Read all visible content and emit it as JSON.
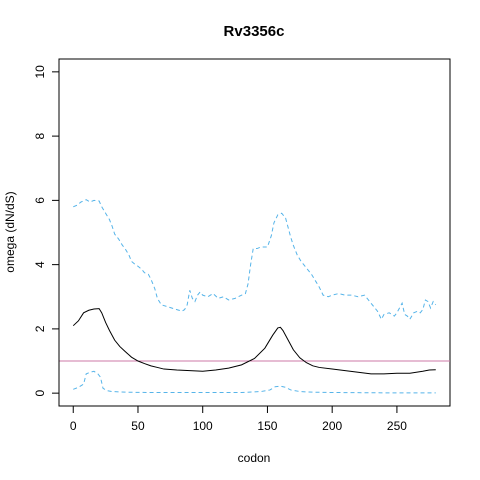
{
  "chart_data": {
    "type": "line",
    "title": "Rv3356c",
    "xlabel": "codon",
    "ylabel": "omega (dN/dS)",
    "xlim": [
      -11,
      291
    ],
    "ylim": [
      -0.4,
      10.4
    ],
    "x_ticks": [
      0,
      50,
      100,
      150,
      200,
      250
    ],
    "y_ticks": [
      0,
      2,
      4,
      6,
      8,
      10
    ],
    "reference_line": {
      "y": 1,
      "color": "#cc79a7"
    },
    "colors": {
      "estimate": "#000000",
      "bounds": "#56b4e9"
    },
    "series": [
      {
        "role": "upper_bound",
        "style": "dashed",
        "points": [
          [
            0,
            5.8
          ],
          [
            3,
            5.85
          ],
          [
            6,
            5.95
          ],
          [
            10,
            6.02
          ],
          [
            13,
            5.95
          ],
          [
            16,
            6.0
          ],
          [
            20,
            5.98
          ],
          [
            22,
            5.8
          ],
          [
            25,
            5.6
          ],
          [
            28,
            5.4
          ],
          [
            30,
            5.2
          ],
          [
            32,
            4.95
          ],
          [
            35,
            4.8
          ],
          [
            38,
            4.6
          ],
          [
            40,
            4.5
          ],
          [
            43,
            4.3
          ],
          [
            45,
            4.1
          ],
          [
            48,
            4.0
          ],
          [
            50,
            3.95
          ],
          [
            53,
            3.85
          ],
          [
            55,
            3.75
          ],
          [
            58,
            3.7
          ],
          [
            60,
            3.55
          ],
          [
            63,
            3.25
          ],
          [
            65,
            2.95
          ],
          [
            68,
            2.75
          ],
          [
            72,
            2.7
          ],
          [
            76,
            2.65
          ],
          [
            80,
            2.6
          ],
          [
            84,
            2.55
          ],
          [
            86,
            2.6
          ],
          [
            88,
            2.75
          ],
          [
            90,
            3.2
          ],
          [
            92,
            2.95
          ],
          [
            94,
            2.85
          ],
          [
            96,
            3.05
          ],
          [
            98,
            3.15
          ],
          [
            100,
            3.05
          ],
          [
            104,
            3.0
          ],
          [
            108,
            3.1
          ],
          [
            112,
            2.95
          ],
          [
            116,
            3.0
          ],
          [
            120,
            2.9
          ],
          [
            125,
            2.95
          ],
          [
            130,
            3.05
          ],
          [
            133,
            3.1
          ],
          [
            135,
            3.4
          ],
          [
            137,
            4.0
          ],
          [
            139,
            4.5
          ],
          [
            142,
            4.5
          ],
          [
            145,
            4.55
          ],
          [
            150,
            4.55
          ],
          [
            153,
            4.9
          ],
          [
            155,
            5.3
          ],
          [
            158,
            5.55
          ],
          [
            161,
            5.6
          ],
          [
            164,
            5.45
          ],
          [
            166,
            5.15
          ],
          [
            168,
            4.85
          ],
          [
            170,
            4.6
          ],
          [
            173,
            4.3
          ],
          [
            176,
            4.1
          ],
          [
            180,
            3.9
          ],
          [
            184,
            3.7
          ],
          [
            187,
            3.5
          ],
          [
            190,
            3.3
          ],
          [
            193,
            3.05
          ],
          [
            197,
            3.0
          ],
          [
            200,
            3.05
          ],
          [
            205,
            3.1
          ],
          [
            210,
            3.05
          ],
          [
            215,
            3.05
          ],
          [
            220,
            3.0
          ],
          [
            225,
            3.05
          ],
          [
            228,
            2.9
          ],
          [
            232,
            2.7
          ],
          [
            235,
            2.55
          ],
          [
            238,
            2.3
          ],
          [
            240,
            2.45
          ],
          [
            244,
            2.5
          ],
          [
            248,
            2.4
          ],
          [
            250,
            2.5
          ],
          [
            252,
            2.65
          ],
          [
            254,
            2.8
          ],
          [
            256,
            2.45
          ],
          [
            258,
            2.4
          ],
          [
            260,
            2.3
          ],
          [
            263,
            2.5
          ],
          [
            266,
            2.55
          ],
          [
            268,
            2.5
          ],
          [
            270,
            2.6
          ],
          [
            272,
            2.9
          ],
          [
            274,
            2.85
          ],
          [
            276,
            2.65
          ],
          [
            278,
            2.85
          ],
          [
            280,
            2.75
          ]
        ]
      },
      {
        "role": "estimate",
        "style": "solid",
        "points": [
          [
            0,
            2.1
          ],
          [
            4,
            2.25
          ],
          [
            8,
            2.5
          ],
          [
            12,
            2.58
          ],
          [
            16,
            2.62
          ],
          [
            20,
            2.63
          ],
          [
            22,
            2.5
          ],
          [
            25,
            2.2
          ],
          [
            28,
            1.95
          ],
          [
            32,
            1.65
          ],
          [
            36,
            1.45
          ],
          [
            40,
            1.3
          ],
          [
            45,
            1.12
          ],
          [
            50,
            1.0
          ],
          [
            55,
            0.92
          ],
          [
            60,
            0.85
          ],
          [
            65,
            0.8
          ],
          [
            70,
            0.75
          ],
          [
            80,
            0.72
          ],
          [
            90,
            0.7
          ],
          [
            100,
            0.68
          ],
          [
            110,
            0.72
          ],
          [
            120,
            0.78
          ],
          [
            130,
            0.88
          ],
          [
            140,
            1.08
          ],
          [
            148,
            1.4
          ],
          [
            154,
            1.8
          ],
          [
            158,
            2.03
          ],
          [
            160,
            2.05
          ],
          [
            162,
            1.95
          ],
          [
            166,
            1.65
          ],
          [
            170,
            1.35
          ],
          [
            175,
            1.1
          ],
          [
            180,
            0.95
          ],
          [
            185,
            0.85
          ],
          [
            190,
            0.8
          ],
          [
            200,
            0.75
          ],
          [
            210,
            0.7
          ],
          [
            220,
            0.65
          ],
          [
            230,
            0.6
          ],
          [
            240,
            0.6
          ],
          [
            250,
            0.62
          ],
          [
            260,
            0.62
          ],
          [
            270,
            0.68
          ],
          [
            275,
            0.72
          ],
          [
            280,
            0.73
          ]
        ]
      },
      {
        "role": "lower_bound",
        "style": "dashed",
        "points": [
          [
            0,
            0.12
          ],
          [
            4,
            0.18
          ],
          [
            8,
            0.28
          ],
          [
            10,
            0.6
          ],
          [
            13,
            0.65
          ],
          [
            16,
            0.68
          ],
          [
            19,
            0.6
          ],
          [
            21,
            0.5
          ],
          [
            23,
            0.15
          ],
          [
            26,
            0.08
          ],
          [
            30,
            0.05
          ],
          [
            40,
            0.03
          ],
          [
            60,
            0.02
          ],
          [
            100,
            0.02
          ],
          [
            130,
            0.02
          ],
          [
            145,
            0.05
          ],
          [
            152,
            0.1
          ],
          [
            156,
            0.2
          ],
          [
            160,
            0.22
          ],
          [
            164,
            0.18
          ],
          [
            168,
            0.1
          ],
          [
            175,
            0.05
          ],
          [
            185,
            0.03
          ],
          [
            200,
            0.02
          ],
          [
            240,
            0.01
          ],
          [
            280,
            0.01
          ]
        ]
      }
    ]
  }
}
